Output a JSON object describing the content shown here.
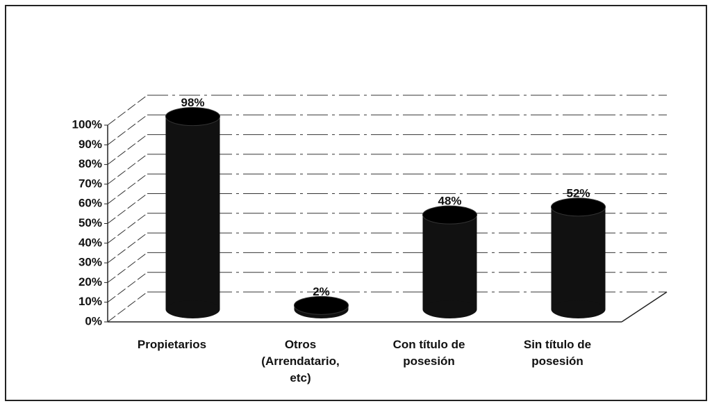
{
  "chart_data": {
    "type": "bar",
    "categories": [
      "Propietarios",
      "Otros (Arrendatario, etc)",
      "Con título de posesión",
      "Sin título de posesión"
    ],
    "values": [
      98,
      2,
      48,
      52
    ],
    "value_labels": [
      "98%",
      "2%",
      "48%",
      "52%"
    ],
    "color": "#111111",
    "ylim": [
      0,
      100
    ],
    "yticks": [
      {
        "value": 0,
        "label": "0%"
      },
      {
        "value": 10,
        "label": "10%"
      },
      {
        "value": 20,
        "label": "20%"
      },
      {
        "value": 30,
        "label": "30%"
      },
      {
        "value": 40,
        "label": "40%"
      },
      {
        "value": 50,
        "label": "50%"
      },
      {
        "value": 60,
        "label": "60%"
      },
      {
        "value": 70,
        "label": "70%"
      },
      {
        "value": 80,
        "label": "80%"
      },
      {
        "value": 90,
        "label": "90%"
      },
      {
        "value": 100,
        "label": "100%"
      }
    ],
    "grid": true
  }
}
